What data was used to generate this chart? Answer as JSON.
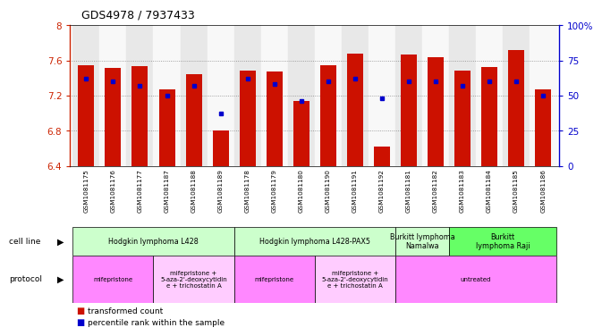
{
  "title": "GDS4978 / 7937433",
  "samples": [
    "GSM1081175",
    "GSM1081176",
    "GSM1081177",
    "GSM1081187",
    "GSM1081188",
    "GSM1081189",
    "GSM1081178",
    "GSM1081179",
    "GSM1081180",
    "GSM1081190",
    "GSM1081191",
    "GSM1081192",
    "GSM1081181",
    "GSM1081182",
    "GSM1081183",
    "GSM1081184",
    "GSM1081185",
    "GSM1081186"
  ],
  "red_values": [
    7.55,
    7.52,
    7.54,
    7.27,
    7.44,
    6.8,
    7.49,
    7.48,
    7.14,
    7.55,
    7.68,
    6.62,
    7.67,
    7.64,
    7.49,
    7.53,
    7.72,
    7.27
  ],
  "blue_values": [
    0.62,
    0.6,
    0.57,
    0.5,
    0.57,
    0.37,
    0.62,
    0.58,
    0.46,
    0.6,
    0.62,
    0.48,
    0.6,
    0.6,
    0.57,
    0.6,
    0.6,
    0.5
  ],
  "ymin": 6.4,
  "ymax": 8.0,
  "yticks_left": [
    6.4,
    6.8,
    7.2,
    7.6,
    8.0
  ],
  "ytick_labels_left": [
    "6.4",
    "6.8",
    "7.2",
    "7.6",
    "8"
  ],
  "right_yticks": [
    0,
    0.25,
    0.5,
    0.75,
    1.0
  ],
  "right_ytick_labels": [
    "0",
    "25",
    "50",
    "75",
    "100%"
  ],
  "cell_line_groups": [
    {
      "label": "Hodgkin lymphoma L428",
      "start": 0,
      "end": 6,
      "color": "#ccffcc"
    },
    {
      "label": "Hodgkin lymphoma L428-PAX5",
      "start": 6,
      "end": 12,
      "color": "#ccffcc"
    },
    {
      "label": "Burkitt lymphoma\nNamalwa",
      "start": 12,
      "end": 14,
      "color": "#ccffcc"
    },
    {
      "label": "Burkitt\nlymphoma Raji",
      "start": 14,
      "end": 18,
      "color": "#66ff66"
    }
  ],
  "protocol_groups": [
    {
      "label": "mifepristone",
      "start": 0,
      "end": 3,
      "color": "#ff88ff"
    },
    {
      "label": "mifepristone +\n5-aza-2'-deoxycytidin\ne + trichostatin A",
      "start": 3,
      "end": 6,
      "color": "#ffccff"
    },
    {
      "label": "mifepristone",
      "start": 6,
      "end": 9,
      "color": "#ff88ff"
    },
    {
      "label": "mifepristone +\n5-aza-2'-deoxycytidin\ne + trichostatin A",
      "start": 9,
      "end": 12,
      "color": "#ffccff"
    },
    {
      "label": "untreated",
      "start": 12,
      "end": 18,
      "color": "#ff88ff"
    }
  ],
  "bar_color": "#cc1100",
  "marker_color": "#0000cc",
  "axis_left_color": "#cc2200",
  "axis_right_color": "#0000cc",
  "col_bg_odd": "#e8e8e8",
  "col_bg_even": "#f8f8f8"
}
